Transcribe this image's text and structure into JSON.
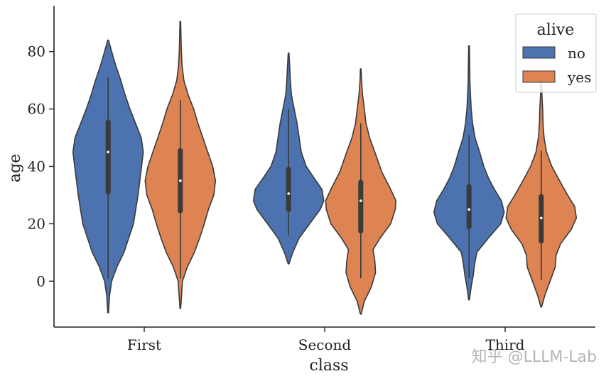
{
  "chart_data": {
    "type": "violin",
    "xlabel": "class",
    "ylabel": "age",
    "categories": [
      "First",
      "Second",
      "Third"
    ],
    "ylim": [
      -16,
      96
    ],
    "yticks": [
      0,
      20,
      40,
      60,
      80
    ],
    "grid": false,
    "legend": {
      "title": "alive",
      "placement": "top-right",
      "entries": [
        "no",
        "yes"
      ]
    },
    "colors": {
      "no": "#4c72b0",
      "yes": "#dd8452",
      "edge": "#3a3a3a"
    },
    "series": [
      {
        "name": "no",
        "violins": [
          {
            "category": "First",
            "min": -11,
            "max": 84,
            "q1": 31,
            "median": 45,
            "q3": 55.5,
            "whisker_low": 0.9,
            "whisker_high": 71,
            "profile": [
              [
                -11,
                0.01
              ],
              [
                -5,
                0.04
              ],
              [
                0,
                0.1
              ],
              [
                5,
                0.25
              ],
              [
                10,
                0.45
              ],
              [
                20,
                0.72
              ],
              [
                30,
                0.85
              ],
              [
                40,
                0.95
              ],
              [
                45,
                1.0
              ],
              [
                50,
                0.94
              ],
              [
                55,
                0.78
              ],
              [
                60,
                0.62
              ],
              [
                65,
                0.48
              ],
              [
                70,
                0.36
              ],
              [
                75,
                0.22
              ],
              [
                80,
                0.1
              ],
              [
                84,
                0.01
              ]
            ]
          },
          {
            "category": "Second",
            "min": 6,
            "max": 79.5,
            "q1": 25,
            "median": 30.5,
            "q3": 39,
            "whisker_low": 16,
            "whisker_high": 60,
            "profile": [
              [
                6,
                0.01
              ],
              [
                10,
                0.12
              ],
              [
                15,
                0.3
              ],
              [
                20,
                0.6
              ],
              [
                25,
                0.9
              ],
              [
                28,
                1.0
              ],
              [
                32,
                0.95
              ],
              [
                36,
                0.72
              ],
              [
                40,
                0.5
              ],
              [
                45,
                0.36
              ],
              [
                50,
                0.3
              ],
              [
                55,
                0.24
              ],
              [
                60,
                0.16
              ],
              [
                65,
                0.08
              ],
              [
                70,
                0.05
              ],
              [
                75,
                0.03
              ],
              [
                79.5,
                0.01
              ]
            ]
          },
          {
            "category": "Third",
            "min": -6.5,
            "max": 82,
            "q1": 19,
            "median": 25,
            "q3": 33,
            "whisker_low": 1,
            "whisker_high": 51,
            "profile": [
              [
                -6.5,
                0.01
              ],
              [
                -2,
                0.06
              ],
              [
                2,
                0.12
              ],
              [
                6,
                0.16
              ],
              [
                10,
                0.22
              ],
              [
                15,
                0.55
              ],
              [
                20,
                0.9
              ],
              [
                24,
                1.0
              ],
              [
                28,
                0.92
              ],
              [
                32,
                0.72
              ],
              [
                36,
                0.55
              ],
              [
                40,
                0.42
              ],
              [
                45,
                0.3
              ],
              [
                50,
                0.17
              ],
              [
                55,
                0.1
              ],
              [
                60,
                0.06
              ],
              [
                65,
                0.04
              ],
              [
                70,
                0.025
              ],
              [
                75,
                0.02
              ],
              [
                82,
                0.01
              ]
            ]
          }
        ]
      },
      {
        "name": "yes",
        "violins": [
          {
            "category": "First",
            "min": -9.5,
            "max": 90.5,
            "q1": 24.5,
            "median": 35,
            "q3": 45.5,
            "whisker_low": 1,
            "whisker_high": 63,
            "profile": [
              [
                -9.5,
                0.01
              ],
              [
                -4,
                0.04
              ],
              [
                0,
                0.06
              ],
              [
                5,
                0.2
              ],
              [
                10,
                0.4
              ],
              [
                15,
                0.55
              ],
              [
                20,
                0.68
              ],
              [
                25,
                0.8
              ],
              [
                30,
                0.95
              ],
              [
                35,
                1.0
              ],
              [
                40,
                0.92
              ],
              [
                45,
                0.78
              ],
              [
                50,
                0.64
              ],
              [
                55,
                0.5
              ],
              [
                60,
                0.38
              ],
              [
                65,
                0.22
              ],
              [
                70,
                0.1
              ],
              [
                75,
                0.05
              ],
              [
                80,
                0.03
              ],
              [
                85,
                0.02
              ],
              [
                90.5,
                0.01
              ]
            ]
          },
          {
            "category": "Second",
            "min": -11.5,
            "max": 74,
            "q1": 17.5,
            "median": 28,
            "q3": 34.5,
            "whisker_low": 1,
            "whisker_high": 55,
            "profile": [
              [
                -11.5,
                0.01
              ],
              [
                -7,
                0.1
              ],
              [
                -2,
                0.3
              ],
              [
                3,
                0.42
              ],
              [
                7,
                0.4
              ],
              [
                11,
                0.35
              ],
              [
                15,
                0.55
              ],
              [
                20,
                0.85
              ],
              [
                25,
                0.98
              ],
              [
                28,
                1.0
              ],
              [
                32,
                0.85
              ],
              [
                38,
                0.6
              ],
              [
                45,
                0.4
              ],
              [
                50,
                0.25
              ],
              [
                55,
                0.15
              ],
              [
                60,
                0.1
              ],
              [
                65,
                0.05
              ],
              [
                70,
                0.02
              ],
              [
                74,
                0.01
              ]
            ]
          },
          {
            "category": "Third",
            "min": -9,
            "max": 69.5,
            "q1": 14,
            "median": 22,
            "q3": 29.5,
            "whisker_low": 0.5,
            "whisker_high": 45.5,
            "profile": [
              [
                -9,
                0.01
              ],
              [
                -5,
                0.1
              ],
              [
                0,
                0.25
              ],
              [
                5,
                0.4
              ],
              [
                9,
                0.42
              ],
              [
                13,
                0.55
              ],
              [
                18,
                0.85
              ],
              [
                22,
                1.0
              ],
              [
                26,
                0.95
              ],
              [
                30,
                0.75
              ],
              [
                35,
                0.52
              ],
              [
                40,
                0.3
              ],
              [
                45,
                0.15
              ],
              [
                50,
                0.08
              ],
              [
                55,
                0.05
              ],
              [
                60,
                0.04
              ],
              [
                65,
                0.02
              ],
              [
                69.5,
                0.01
              ]
            ]
          }
        ]
      }
    ]
  },
  "watermark": "知乎 @LLLM-Lab"
}
